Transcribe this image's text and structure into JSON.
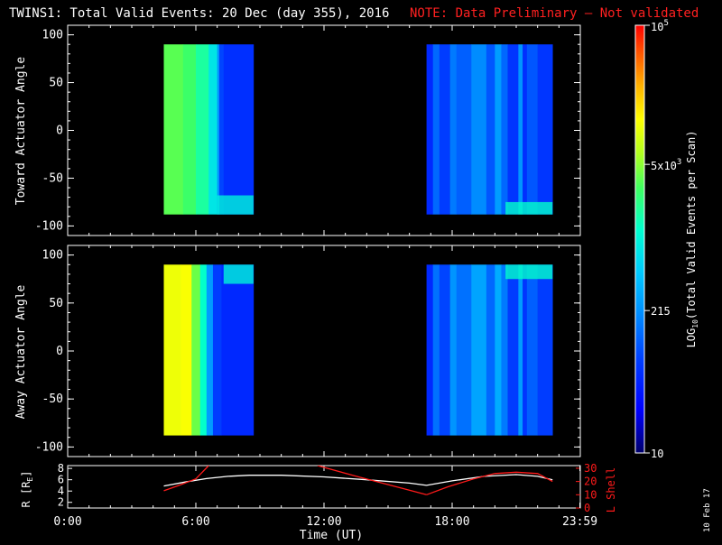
{
  "header": {
    "title": "TWINS1: Total Valid Events: 20 Dec (day 355), 2016",
    "note": "NOTE: Data Preliminary – Not validated",
    "note_color": "#ff2020"
  },
  "stamp": "10 Feb 17",
  "colors": {
    "axes": "#ffffff",
    "r_line": "#ffffff",
    "lshell_line": "#ff1a1a"
  },
  "chart_data": [
    {
      "type": "heatmap",
      "panel": "toward",
      "ylabel": "Toward Actuator Angle",
      "ylim": [
        -110,
        110
      ],
      "y_ticks": [
        100,
        50,
        0,
        -50,
        -100
      ],
      "xlim": [
        0,
        24
      ],
      "data_extent_y": [
        -88,
        90
      ],
      "blocks": [
        {
          "start": 4.5,
          "end": 8.7,
          "stripes": [
            {
              "t0": 4.5,
              "t1": 5.4,
              "value": 3.55
            },
            {
              "t0": 5.4,
              "t1": 6.0,
              "value": 3.45
            },
            {
              "t0": 6.0,
              "t1": 6.6,
              "value": 3.25
            },
            {
              "t0": 6.6,
              "t1": 7.0,
              "value": 2.9
            },
            {
              "t0": 7.0,
              "t1": 7.1,
              "value": 2.35
            },
            {
              "t0": 7.1,
              "t1": 7.3,
              "value": 1.9
            },
            {
              "t0": 7.3,
              "t1": 8.7,
              "value": 1.75
            }
          ]
        },
        {
          "start": 16.8,
          "end": 22.7,
          "stripes": [
            {
              "t0": 16.8,
              "t1": 17.1,
              "value": 1.7
            },
            {
              "t0": 17.1,
              "t1": 17.4,
              "value": 2.1
            },
            {
              "t0": 17.4,
              "t1": 17.9,
              "value": 1.85
            },
            {
              "t0": 17.9,
              "t1": 18.2,
              "value": 2.2
            },
            {
              "t0": 18.2,
              "t1": 18.9,
              "value": 2.05
            },
            {
              "t0": 18.9,
              "t1": 19.6,
              "value": 2.3
            },
            {
              "t0": 19.6,
              "t1": 20.0,
              "value": 2.0
            },
            {
              "t0": 20.0,
              "t1": 20.3,
              "value": 2.4
            },
            {
              "t0": 20.3,
              "t1": 20.6,
              "value": 2.1
            },
            {
              "t0": 20.6,
              "t1": 21.1,
              "value": 1.8
            },
            {
              "t0": 21.1,
              "t1": 21.3,
              "value": 2.35
            },
            {
              "t0": 21.3,
              "t1": 21.5,
              "value": 1.75
            },
            {
              "t0": 21.5,
              "t1": 22.0,
              "value": 2.0
            },
            {
              "t0": 22.0,
              "t1": 22.7,
              "value": 1.8
            }
          ]
        }
      ],
      "hotspots": [
        {
          "t0": 7.0,
          "t1": 8.7,
          "y0": -88,
          "y1": -68,
          "value": 3.0
        },
        {
          "t0": 20.5,
          "t1": 22.7,
          "y0": -88,
          "y1": -75,
          "value": 3.1
        }
      ]
    },
    {
      "type": "heatmap",
      "panel": "away",
      "ylabel": "Away Actuator Angle",
      "ylim": [
        -110,
        110
      ],
      "y_ticks": [
        100,
        50,
        0,
        -50,
        -100
      ],
      "xlim": [
        0,
        24
      ],
      "data_extent_y": [
        -88,
        90
      ],
      "blocks": [
        {
          "start": 4.5,
          "end": 8.7,
          "stripes": [
            {
              "t0": 4.5,
              "t1": 5.3,
              "value": 4.05
            },
            {
              "t0": 5.3,
              "t1": 5.8,
              "value": 4.1
            },
            {
              "t0": 5.8,
              "t1": 6.2,
              "value": 3.6
            },
            {
              "t0": 6.2,
              "t1": 6.5,
              "value": 3.1
            },
            {
              "t0": 6.5,
              "t1": 6.8,
              "value": 2.4
            },
            {
              "t0": 6.8,
              "t1": 7.2,
              "value": 1.85
            },
            {
              "t0": 7.2,
              "t1": 8.7,
              "value": 1.7
            }
          ]
        },
        {
          "start": 16.8,
          "end": 22.7,
          "stripes": [
            {
              "t0": 16.8,
              "t1": 17.1,
              "value": 1.7
            },
            {
              "t0": 17.1,
              "t1": 17.4,
              "value": 2.15
            },
            {
              "t0": 17.4,
              "t1": 17.9,
              "value": 1.9
            },
            {
              "t0": 17.9,
              "t1": 18.2,
              "value": 2.35
            },
            {
              "t0": 18.2,
              "t1": 18.9,
              "value": 2.15
            },
            {
              "t0": 18.9,
              "t1": 19.6,
              "value": 2.45
            },
            {
              "t0": 19.6,
              "t1": 20.0,
              "value": 2.1
            },
            {
              "t0": 20.0,
              "t1": 20.3,
              "value": 2.5
            },
            {
              "t0": 20.3,
              "t1": 20.6,
              "value": 2.2
            },
            {
              "t0": 20.6,
              "t1": 21.1,
              "value": 1.85
            },
            {
              "t0": 21.1,
              "t1": 21.3,
              "value": 2.4
            },
            {
              "t0": 21.3,
              "t1": 21.5,
              "value": 1.8
            },
            {
              "t0": 21.5,
              "t1": 22.0,
              "value": 2.05
            },
            {
              "t0": 22.0,
              "t1": 22.7,
              "value": 1.85
            }
          ]
        }
      ],
      "hotspots": [
        {
          "t0": 7.3,
          "t1": 8.7,
          "y0": 70,
          "y1": 90,
          "value": 3.0
        },
        {
          "t0": 20.5,
          "t1": 22.7,
          "y0": 75,
          "y1": 90,
          "value": 3.1
        }
      ]
    },
    {
      "type": "line",
      "panel": "orbit",
      "xlabel": "Time (UT)",
      "x_tick_labels": [
        "0:00",
        "6:00",
        "12:00",
        "18:00",
        "23:59"
      ],
      "x_ticks": [
        0,
        6,
        12,
        18,
        23.98
      ],
      "xlim": [
        0,
        24
      ],
      "ylabel_left": "R [R",
      "ylabel_left_sub": "E",
      "ylabel_left_end": "]",
      "ylim_left": [
        1,
        8.5
      ],
      "y_ticks_left": [
        8,
        6,
        4,
        2
      ],
      "ylabel_right": "L Shell",
      "ylim_right": [
        0,
        32
      ],
      "y_ticks_right": [
        30,
        20,
        10,
        0
      ],
      "series": [
        {
          "axis": "left",
          "x": [
            4.5,
            5.5,
            6.5,
            7.5,
            8.5,
            10,
            12,
            14,
            16,
            16.8,
            18,
            19.5,
            21,
            22,
            22.7
          ],
          "y": [
            4.9,
            5.6,
            6.2,
            6.6,
            6.8,
            6.8,
            6.5,
            6.0,
            5.4,
            5.0,
            5.8,
            6.6,
            6.9,
            6.6,
            6.0
          ]
        },
        {
          "axis": "right",
          "segments": [
            {
              "x": [
                4.5,
                5.2,
                6.0,
                6.6
              ],
              "y": [
                13,
                17,
                22,
                32
              ]
            },
            {
              "x": [
                11.7,
                13.5,
                16.8
              ],
              "y": [
                32,
                24,
                10
              ]
            },
            {
              "x": [
                16.8,
                17.8,
                19,
                20,
                21,
                22,
                22.7
              ],
              "y": [
                10,
                16,
                22,
                26,
                27,
                26,
                20
              ]
            }
          ]
        }
      ]
    }
  ],
  "colorbar": {
    "label_main": "LOG",
    "label_sub": "10",
    "label_rest": "(Total Valid Events per Scan)",
    "scale": "log",
    "range": [
      1,
      5
    ],
    "tick_labels": [
      {
        "value": 5,
        "base": "10",
        "exp": "5"
      },
      {
        "value": 3.699,
        "base": "5x10",
        "exp": "3"
      },
      {
        "value": 2.332,
        "base": "215",
        "exp": ""
      },
      {
        "value": 1,
        "base": "10",
        "exp": ""
      }
    ]
  }
}
